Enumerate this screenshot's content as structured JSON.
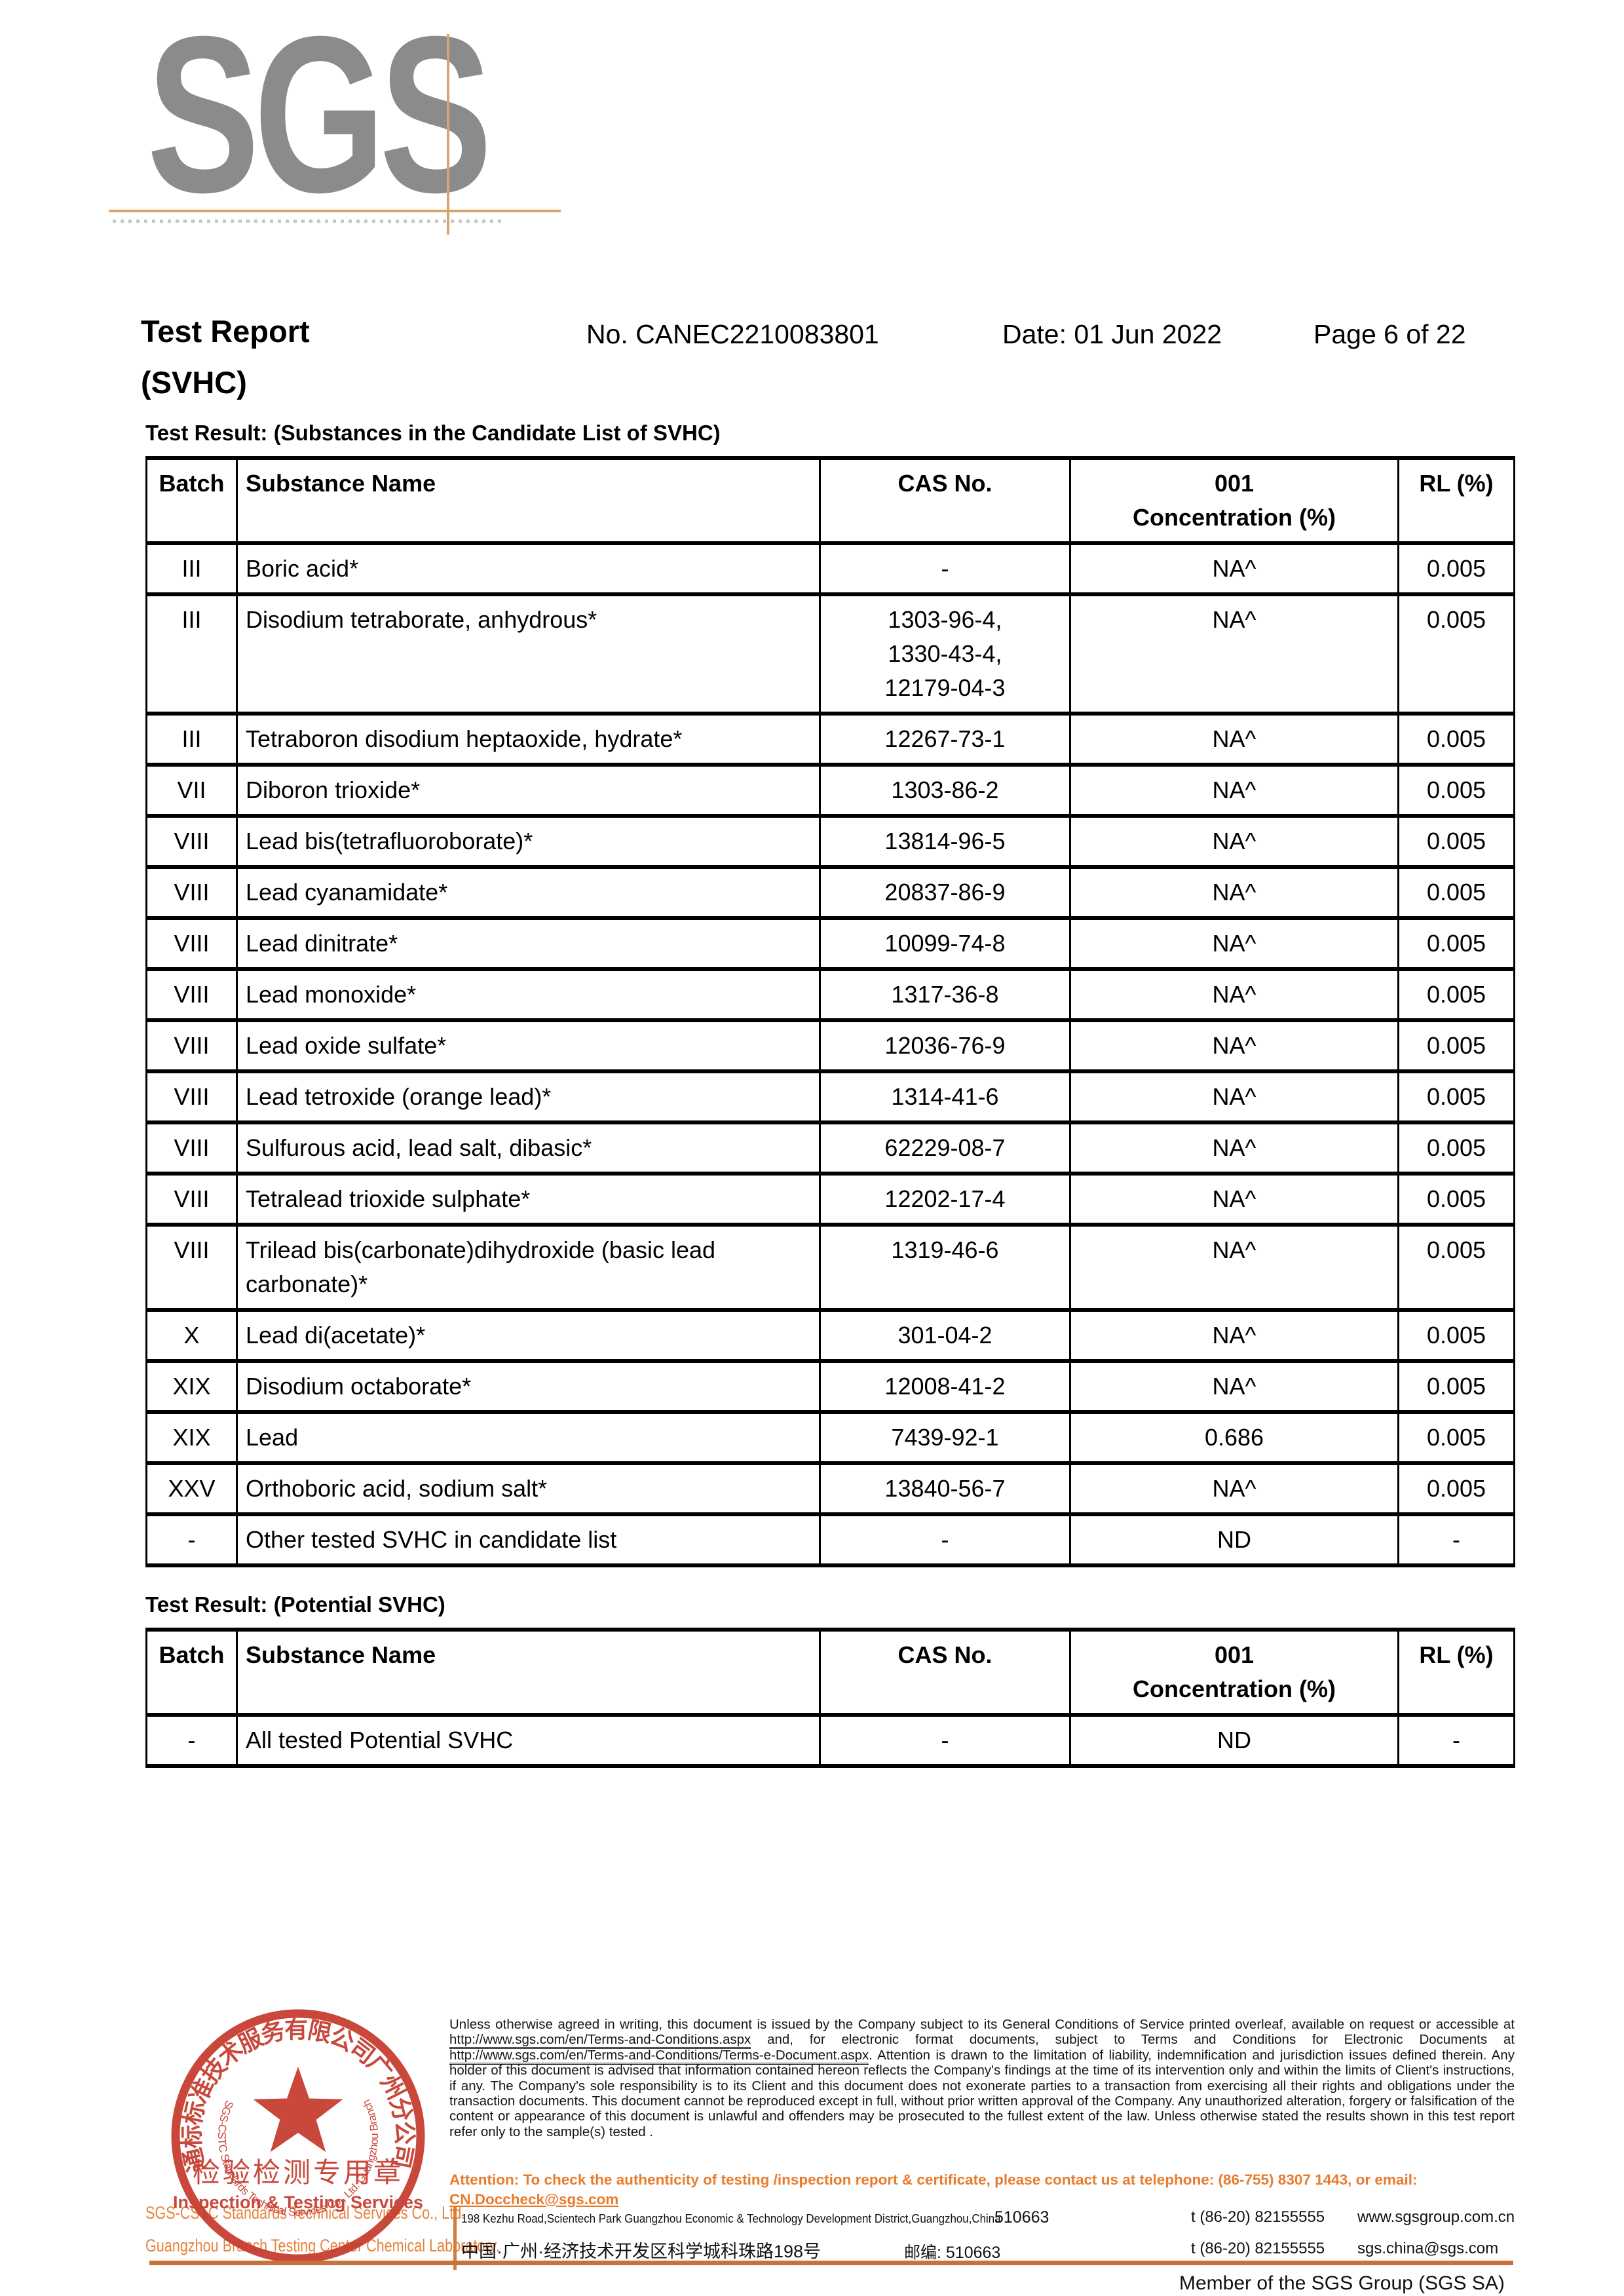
{
  "colors": {
    "logo_gray": "#8b8b8b",
    "accent_orange": "#e8823b",
    "rule_orange": "#c9713a",
    "stamp_red": "#c5392b"
  },
  "header": {
    "logo": "SGS",
    "title": "Test Report",
    "subtitle": "(SVHC)",
    "report_no": "No. CANEC2210083801",
    "date": "Date: 01 Jun 2022",
    "page": "Page 6 of 22"
  },
  "candidate_table": {
    "heading": "Test Result: (Substances in the Candidate List of SVHC)",
    "columns": [
      "Batch",
      "Substance Name",
      "CAS No.",
      "001\nConcentration (%)",
      "RL (%)"
    ],
    "rows": [
      {
        "batch": "III",
        "name": "Boric acid*",
        "cas": "-",
        "conc": "NA^",
        "rl": "0.005"
      },
      {
        "batch": "III",
        "name": "Disodium tetraborate, anhydrous*",
        "cas": "1303-96-4,\n1330-43-4,\n12179-04-3",
        "conc": "NA^",
        "rl": "0.005"
      },
      {
        "batch": "III",
        "name": "Tetraboron disodium heptaoxide, hydrate*",
        "cas": "12267-73-1",
        "conc": "NA^",
        "rl": "0.005"
      },
      {
        "batch": "VII",
        "name": "Diboron trioxide*",
        "cas": "1303-86-2",
        "conc": "NA^",
        "rl": "0.005"
      },
      {
        "batch": "VIII",
        "name": "Lead bis(tetrafluoroborate)*",
        "cas": "13814-96-5",
        "conc": "NA^",
        "rl": "0.005"
      },
      {
        "batch": "VIII",
        "name": "Lead cyanamidate*",
        "cas": "20837-86-9",
        "conc": "NA^",
        "rl": "0.005"
      },
      {
        "batch": "VIII",
        "name": "Lead dinitrate*",
        "cas": "10099-74-8",
        "conc": "NA^",
        "rl": "0.005"
      },
      {
        "batch": "VIII",
        "name": "Lead monoxide*",
        "cas": "1317-36-8",
        "conc": "NA^",
        "rl": "0.005"
      },
      {
        "batch": "VIII",
        "name": "Lead oxide sulfate*",
        "cas": "12036-76-9",
        "conc": "NA^",
        "rl": "0.005"
      },
      {
        "batch": "VIII",
        "name": "Lead tetroxide (orange lead)*",
        "cas": "1314-41-6",
        "conc": "NA^",
        "rl": "0.005"
      },
      {
        "batch": "VIII",
        "name": "Sulfurous acid, lead salt, dibasic*",
        "cas": "62229-08-7",
        "conc": "NA^",
        "rl": "0.005"
      },
      {
        "batch": "VIII",
        "name": "Tetralead trioxide sulphate*",
        "cas": "12202-17-4",
        "conc": "NA^",
        "rl": "0.005"
      },
      {
        "batch": "VIII",
        "name": "Trilead bis(carbonate)dihydroxide (basic lead carbonate)*",
        "cas": "1319-46-6",
        "conc": "NA^",
        "rl": "0.005"
      },
      {
        "batch": "X",
        "name": "Lead di(acetate)*",
        "cas": "301-04-2",
        "conc": "NA^",
        "rl": "0.005"
      },
      {
        "batch": "XIX",
        "name": "Disodium octaborate*",
        "cas": "12008-41-2",
        "conc": "NA^",
        "rl": "0.005"
      },
      {
        "batch": "XIX",
        "name": "Lead",
        "cas": "7439-92-1",
        "conc": "0.686",
        "rl": "0.005"
      },
      {
        "batch": "XXV",
        "name": "Orthoboric acid, sodium salt*",
        "cas": "13840-56-7",
        "conc": "NA^",
        "rl": "0.005"
      },
      {
        "batch": "-",
        "name": "Other tested SVHC in candidate list",
        "cas": "-",
        "conc": "ND",
        "rl": "-"
      }
    ]
  },
  "potential_table": {
    "heading": "Test Result: (Potential SVHC)",
    "columns": [
      "Batch",
      "Substance Name",
      "CAS No.",
      "001\nConcentration (%)",
      "RL (%)"
    ],
    "rows": [
      {
        "batch": "-",
        "name": "All tested Potential SVHC",
        "cas": "-",
        "conc": "ND",
        "rl": "-"
      }
    ]
  },
  "stamp": {
    "top_arc": "通标标准技术服务有限公司广州分公司",
    "center_cn": "检验检测专用章",
    "center_en": "Inspection & Testing Services",
    "bottom_arc": "SGS-CSTC Standards Technical Services Co., Ltd. Guangzhou Branch"
  },
  "footer": {
    "company_line1": "SGS-CSTC Standards Technical Services Co., Ltd.",
    "company_line2": "Guangzhou Branch Testing Center Chemical Laboratory.",
    "legal_segments": [
      {
        "text": "Unless otherwise agreed in writing, this document is issued by the Company subject to its General Conditions of Service printed overleaf, available on request or accessible at "
      },
      {
        "text": "http://www.sgs.com/en/Terms-and-Conditions.aspx",
        "link": true
      },
      {
        "text": " and, for electronic format documents, subject to Terms and Conditions for Electronic Documents at "
      },
      {
        "text": "http://www.sgs.com/en/Terms-and-Conditions/Terms-e-Document.aspx",
        "link": true
      },
      {
        "text": ". Attention is drawn to the limitation of liability, indemnification and jurisdiction issues defined therein. Any holder of this document is advised that information contained hereon reflects the Company's findings at the time of its intervention only and within the limits of Client's instructions, if any. The Company's sole responsibility is to its Client and this document does not exonerate parties to a transaction from exercising all their rights and obligations under the transaction documents. This document cannot be reproduced except in full, without prior written approval of the Company. Any unauthorized alteration, forgery or falsification of the content or appearance of this document is unlawful and offenders may be prosecuted to the fullest extent of the law. Unless otherwise stated the results shown in this test report refer only to the sample(s) tested ."
      }
    ],
    "attention_segments": [
      {
        "text": "Attention: To check the authenticity of testing /inspection report & certificate, please contact us at telephone: (86-755) 8307 1443, or email: "
      },
      {
        "text": "CN.Doccheck@sgs.com",
        "link": true
      }
    ],
    "address_en": "198 Kezhu Road,Scientech Park Guangzhou Economic & Technology Development District,Guangzhou,China",
    "address_en_postal": "510663",
    "phone1": "t (86-20) 82155555",
    "website": "www.sgsgroup.com.cn",
    "address_cn": "中国·广州·经济技术开发区科学城科珠路198号",
    "address_cn_postal": "邮编: 510663",
    "phone2": "t (86-20) 82155555",
    "email": "sgs.china@sgs.com",
    "member_line": "Member of the SGS Group (SGS SA)"
  }
}
